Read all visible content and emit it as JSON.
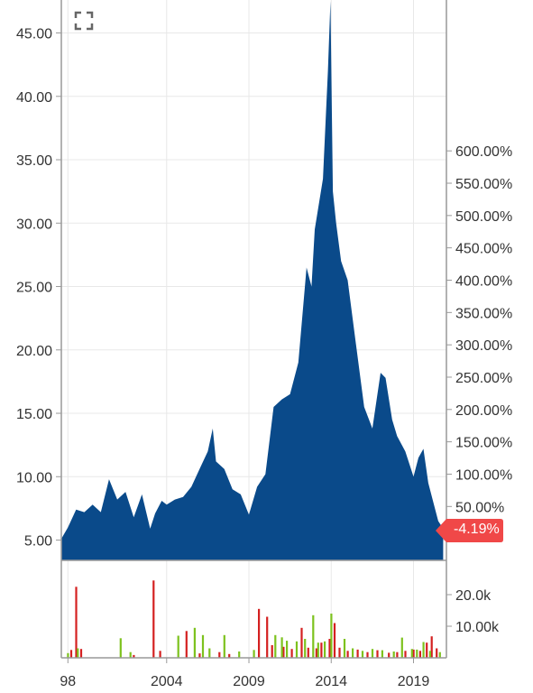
{
  "colors": {
    "price_fill": "#0a4a8a",
    "volume_up": "#7dc21e",
    "volume_down": "#d42020",
    "badge": "#f04848",
    "grid": "#e8e8e8",
    "axis": "#999999"
  },
  "icons": {
    "fullscreen": "fullscreen-icon"
  },
  "last_change_badge": "-4.19%",
  "chart_data": [
    {
      "type": "area",
      "title": "",
      "xlabel": "",
      "ylabel": "",
      "xlim": [
        1997.6,
        2021.0
      ],
      "ylim": [
        3.4,
        47.6
      ],
      "left_ticks": [
        "5.00",
        "10.00",
        "15.00",
        "20.00",
        "25.00",
        "30.00",
        "35.00",
        "40.00",
        "45.00"
      ],
      "left_tick_values": [
        5,
        10,
        15,
        20,
        25,
        30,
        35,
        40,
        45
      ],
      "right_ticks": [
        "50.00%",
        "100.00%",
        "150.00%",
        "200.00%",
        "250.00%",
        "300.00%",
        "350.00%",
        "400.00%",
        "450.00%",
        "500.00%",
        "550.00%",
        "600.00%"
      ],
      "right_tick_values": [
        50,
        100,
        150,
        200,
        250,
        300,
        350,
        400,
        450,
        500,
        550,
        600
      ],
      "right_axis_note": "percent change relative to start price",
      "x_ticks": [
        "98",
        "2004",
        "2009",
        "2014",
        "2019"
      ],
      "x_tick_values": [
        1998,
        2004,
        2009,
        2014,
        2019
      ],
      "grid": true,
      "series": [
        {
          "x": [
            1997.6,
            1998.0,
            1998.5,
            1999.0,
            1999.5,
            2000.0,
            2000.5,
            2001.0,
            2001.5,
            2002.0,
            2002.5,
            2003.0,
            2003.3,
            2003.7,
            2004.0,
            2004.5,
            2005.0,
            2005.5,
            2006.0,
            2006.5,
            2006.8,
            2007.0,
            2007.5,
            2008.0,
            2008.5,
            2009.0,
            2009.5,
            2010.0,
            2010.5,
            2011.0,
            2011.5,
            2012.0,
            2012.5,
            2012.8,
            2013.0,
            2013.5,
            2013.8,
            2013.95,
            2014.1,
            2014.3,
            2014.6,
            2015.0,
            2015.5,
            2016.0,
            2016.5,
            2017.0,
            2017.3,
            2017.7,
            2018.0,
            2018.5,
            2019.0,
            2019.3,
            2019.6,
            2019.9,
            2020.2,
            2020.5,
            2020.8
          ],
          "values": [
            5.1,
            6.0,
            7.4,
            7.2,
            7.8,
            7.2,
            9.8,
            8.2,
            8.8,
            6.8,
            8.6,
            5.9,
            7.1,
            8.1,
            7.8,
            8.2,
            8.4,
            9.2,
            10.6,
            12.0,
            13.8,
            11.2,
            10.6,
            9.0,
            8.6,
            7.0,
            9.2,
            10.2,
            15.5,
            16.1,
            16.5,
            19.0,
            26.5,
            25.0,
            29.5,
            33.5,
            42.0,
            47.5,
            32.5,
            30.0,
            27.0,
            25.5,
            20.5,
            15.5,
            13.8,
            18.2,
            17.8,
            14.5,
            13.2,
            12.0,
            10.0,
            11.5,
            12.2,
            9.5,
            8.0,
            6.5,
            5.9
          ]
        }
      ]
    },
    {
      "type": "bar",
      "title": "",
      "xlabel": "",
      "ylabel": "",
      "ylim": [
        0,
        30000
      ],
      "right_ticks": [
        "10.00k",
        "20.0k"
      ],
      "right_tick_values": [
        10000,
        20000
      ],
      "series": [
        {
          "name": "",
          "direction": "down",
          "x": [
            1998.2,
            1998.5,
            1998.8,
            2002.0,
            2003.2,
            2003.6,
            2005.2,
            2006.0,
            2007.2,
            2007.8,
            2009.6,
            2010.1,
            2010.4,
            2011.1,
            2011.6,
            2012.2,
            2012.6,
            2013.1,
            2013.4,
            2013.9,
            2014.2,
            2014.5,
            2015.0,
            2015.6,
            2016.2,
            2016.8,
            2017.5,
            2018.0,
            2018.5,
            2019.0,
            2019.4,
            2019.8,
            2020.1,
            2020.4
          ],
          "values": [
            2500,
            22500,
            2800,
            900,
            24500,
            2200,
            8500,
            1400,
            1800,
            1200,
            15500,
            13000,
            4000,
            3500,
            2800,
            9500,
            3200,
            3000,
            4800,
            6000,
            11000,
            3200,
            2200,
            2600,
            1800,
            2400,
            1600,
            1800,
            2200,
            2600,
            2200,
            4800,
            6800,
            3000
          ]
        },
        {
          "name": "",
          "direction": "up",
          "x": [
            1998.0,
            1998.6,
            2001.2,
            2001.8,
            2004.7,
            2005.7,
            2006.2,
            2006.6,
            2007.5,
            2008.4,
            2009.3,
            2010.6,
            2011.0,
            2011.3,
            2011.9,
            2012.4,
            2012.9,
            2013.2,
            2013.6,
            2014.0,
            2014.8,
            2015.3,
            2015.9,
            2016.5,
            2017.1,
            2017.8,
            2018.3,
            2018.9,
            2019.2,
            2019.6,
            2020.0,
            2020.6
          ],
          "values": [
            1500,
            3000,
            6200,
            1800,
            7000,
            9500,
            7200,
            3000,
            7200,
            2000,
            2500,
            7200,
            6500,
            5400,
            5200,
            6000,
            13500,
            4800,
            5200,
            14000,
            6000,
            3000,
            2200,
            2800,
            2400,
            2000,
            6400,
            2800,
            2600,
            5000,
            2200,
            1800
          ]
        }
      ]
    }
  ]
}
